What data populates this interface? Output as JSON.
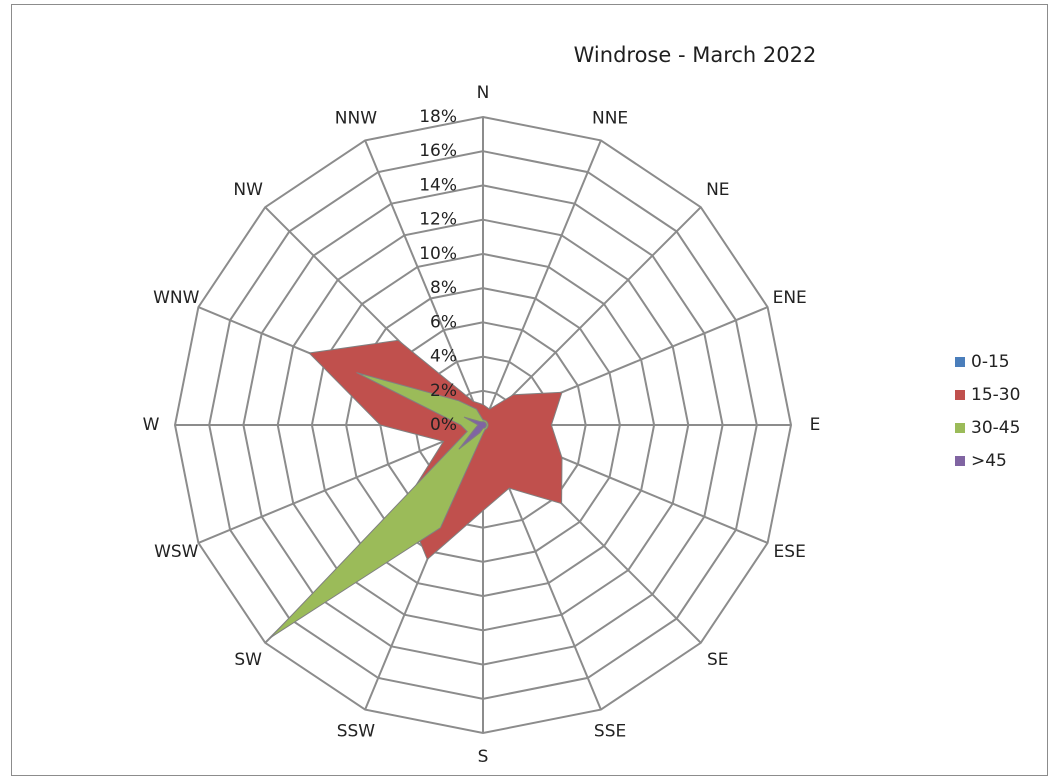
{
  "chart_data": {
    "type": "radar",
    "title": "Windrose - March 2022",
    "directions": [
      "N",
      "NNE",
      "NE",
      "ENE",
      "E",
      "ESE",
      "SE",
      "SSE",
      "S",
      "SSW",
      "SW",
      "WSW",
      "W",
      "WNW",
      "NW",
      "NNW"
    ],
    "tick_labels": [
      "0%",
      "2%",
      "4%",
      "6%",
      "8%",
      "10%",
      "12%",
      "14%",
      "16%",
      "18%"
    ],
    "rlim": [
      0,
      18
    ],
    "rtick_step": 2,
    "grid": true,
    "legend_position": "right",
    "series": [
      {
        "name": "0-15",
        "color": "#4a7ebb",
        "values": [
          0.2,
          0.2,
          0.2,
          0.2,
          0.2,
          0.2,
          0.2,
          0.2,
          0.2,
          0.2,
          0.2,
          0.2,
          0.3,
          0.3,
          0.2,
          0.2
        ]
      },
      {
        "name": "15-30",
        "color": "#c0504d",
        "values": [
          1.2,
          1.0,
          2.5,
          5.0,
          4.0,
          5.0,
          6.5,
          4.0,
          5.0,
          8.5,
          6.5,
          2.5,
          6.0,
          11.0,
          7.0,
          1.5
        ]
      },
      {
        "name": "30-45",
        "color": "#9bbb59",
        "values": [
          0.3,
          0.3,
          0.3,
          0.3,
          0.3,
          0.3,
          0.3,
          0.3,
          0.5,
          6.5,
          17.6,
          1.0,
          1.3,
          8.0,
          2.0,
          1.0
        ]
      },
      {
        "name": ">45",
        "color": "#8064a2",
        "values": [
          0.2,
          0.2,
          0.2,
          0.2,
          0.2,
          0.2,
          0.2,
          0.2,
          0.2,
          0.5,
          2.0,
          0.5,
          0.3,
          1.2,
          0.3,
          0.2
        ]
      }
    ]
  }
}
